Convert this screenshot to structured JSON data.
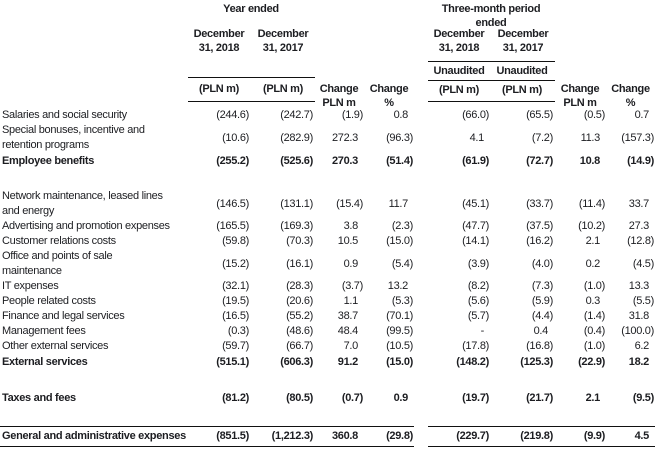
{
  "title": "General and administrative expenses table",
  "colors": {
    "text": "#1c1d21",
    "rule": "#111111"
  },
  "header": {
    "year_ended": {
      "title": "Year ended",
      "col1": "December\n31, 2018",
      "col2": "December\n31, 2017",
      "unit1": "(PLN m)",
      "unit2": "(PLN m)",
      "change_plnm": "Change\nPLN m",
      "change_pct": "Change\n%"
    },
    "three_month": {
      "title": "Three-month period\nended",
      "col1": "December\n31, 2018",
      "col2": "December\n31, 2017",
      "unaudited1": "Unaudited",
      "unaudited2": "Unaudited",
      "unit1": "(PLN m)",
      "unit2": "(PLN m)",
      "change_plnm": "Change\nPLN m",
      "change_pct": "Change\n%"
    }
  },
  "rows": [
    {
      "style": "normal",
      "label": "Salaries and social security",
      "values": [
        "(244.6)",
        "(242.7)",
        "(1.9)",
        "0.8",
        "(66.0)",
        "(65.5)",
        "(0.5)",
        "0.7"
      ]
    },
    {
      "style": "normal",
      "label": "Special bonuses, incentive and\nretention programs",
      "values": [
        "(10.6)",
        "(282.9)",
        "272.3",
        "(96.3)",
        "4.1",
        "(7.2)",
        "11.3",
        "(157.3)"
      ]
    },
    {
      "style": "total",
      "label": "Employee benefits",
      "values": [
        "(255.2)",
        "(525.6)",
        "270.3",
        "(51.4)",
        "(61.9)",
        "(72.7)",
        "10.8",
        "(14.9)"
      ]
    },
    {
      "style": "spacer"
    },
    {
      "style": "normal",
      "label": "Network maintenance, leased lines\nand energy",
      "values": [
        "(146.5)",
        "(131.1)",
        "(15.4)",
        "11.7",
        "(45.1)",
        "(33.7)",
        "(11.4)",
        "33.7"
      ]
    },
    {
      "style": "normal",
      "label": "Advertising and promotion expenses",
      "values": [
        "(165.5)",
        "(169.3)",
        "3.8",
        "(2.3)",
        "(47.7)",
        "(37.5)",
        "(10.2)",
        "27.3"
      ]
    },
    {
      "style": "normal",
      "label": "Customer relations costs",
      "values": [
        "(59.8)",
        "(70.3)",
        "10.5",
        "(15.0)",
        "(14.1)",
        "(16.2)",
        "2.1",
        "(12.8)"
      ]
    },
    {
      "style": "normal",
      "label": "Office and points of sale\nmaintenance",
      "values": [
        "(15.2)",
        "(16.1)",
        "0.9",
        "(5.4)",
        "(3.9)",
        "(4.0)",
        "0.2",
        "(4.5)"
      ]
    },
    {
      "style": "normal",
      "label": "IT expenses",
      "values": [
        "(32.1)",
        "(28.3)",
        "(3.7)",
        "13.2",
        "(8.2)",
        "(7.3)",
        "(1.0)",
        "13.3"
      ]
    },
    {
      "style": "normal",
      "label": "People related costs",
      "values": [
        "(19.5)",
        "(20.6)",
        "1.1",
        "(5.3)",
        "(5.6)",
        "(5.9)",
        "0.3",
        "(5.5)"
      ]
    },
    {
      "style": "normal",
      "label": "Finance and legal services",
      "values": [
        "(16.5)",
        "(55.2)",
        "38.7",
        "(70.1)",
        "(5.7)",
        "(4.4)",
        "(1.4)",
        "31.8"
      ]
    },
    {
      "style": "normal",
      "label": "Management fees",
      "values": [
        "(0.3)",
        "(48.6)",
        "48.4",
        "(99.5)",
        "-",
        "0.4",
        "(0.4)",
        "(100.0)"
      ]
    },
    {
      "style": "normal",
      "label": "Other external services",
      "values": [
        "(59.7)",
        "(66.7)",
        "7.0",
        "(10.5)",
        "(17.8)",
        "(16.8)",
        "(1.0)",
        "6.2"
      ]
    },
    {
      "style": "total",
      "label": "External services",
      "values": [
        "(515.1)",
        "(606.3)",
        "91.2",
        "(15.0)",
        "(148.2)",
        "(125.3)",
        "(22.9)",
        "18.2"
      ]
    },
    {
      "style": "spacer"
    },
    {
      "style": "total",
      "label": "Taxes and fees",
      "values": [
        "(81.2)",
        "(80.5)",
        "(0.7)",
        "0.9",
        "(19.7)",
        "(21.7)",
        "2.1",
        "(9.5)"
      ]
    },
    {
      "style": "spacer"
    },
    {
      "style": "grand",
      "label": "General and administrative expenses",
      "values": [
        "(851.5)",
        "(1,212.3)",
        "360.8",
        "(29.8)",
        "(229.7)",
        "(219.8)",
        "(9.9)",
        "4.5"
      ]
    }
  ]
}
